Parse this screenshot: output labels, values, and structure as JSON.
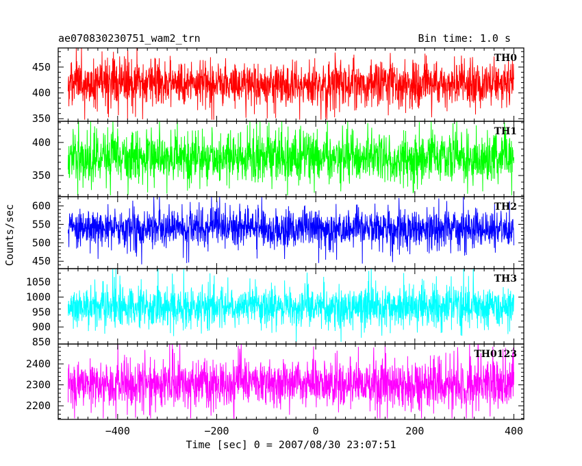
{
  "header": {
    "left_title": "ae070830230751_wam2_trn",
    "right_title": "Bin time: 1.0 s"
  },
  "axes": {
    "ylabel": "Counts/sec",
    "xlabel": "Time [sec] 0 = 2007/08/30 23:07:51",
    "xlim": [
      -520,
      420
    ],
    "x_ticks": [
      -400,
      -200,
      0,
      200,
      400
    ],
    "x_tick_labels": [
      "−400",
      "−200",
      "0",
      "200",
      "400"
    ]
  },
  "chart_data": [
    {
      "type": "line",
      "name": "TH0",
      "color": "#ff0000",
      "ylim": [
        345,
        487
      ],
      "yticks": [
        350,
        400,
        450
      ],
      "x_range": [
        -500,
        400
      ],
      "bin_time_s": 1.0,
      "mean": 418,
      "amplitude": 30,
      "observed_min": 348,
      "observed_max": 487
    },
    {
      "type": "line",
      "name": "TH1",
      "color": "#00ff00",
      "ylim": [
        318,
        432
      ],
      "yticks": [
        350,
        400
      ],
      "x_range": [
        -500,
        400
      ],
      "bin_time_s": 1.0,
      "mean": 377,
      "amplitude": 25,
      "observed_min": 320,
      "observed_max": 432
    },
    {
      "type": "line",
      "name": "TH2",
      "color": "#0000ff",
      "ylim": [
        430,
        625
      ],
      "yticks": [
        450,
        500,
        550,
        600
      ],
      "x_range": [
        -500,
        400
      ],
      "bin_time_s": 1.0,
      "mean": 540,
      "amplitude": 35,
      "observed_min": 432,
      "observed_max": 625
    },
    {
      "type": "line",
      "name": "TH3",
      "color": "#00ffff",
      "ylim": [
        843,
        1095
      ],
      "yticks": [
        850,
        900,
        950,
        1000,
        1050
      ],
      "x_range": [
        -500,
        400
      ],
      "bin_time_s": 1.0,
      "mean": 968,
      "amplitude": 45,
      "observed_min": 850,
      "observed_max": 1095
    },
    {
      "type": "line",
      "name": "TH0123",
      "color": "#ff00ff",
      "ylim": [
        2135,
        2495
      ],
      "yticks": [
        2200,
        2300,
        2400
      ],
      "x_range": [
        -500,
        400
      ],
      "bin_time_s": 1.0,
      "mean": 2305,
      "amplitude": 75,
      "observed_min": 2140,
      "observed_max": 2495
    }
  ]
}
